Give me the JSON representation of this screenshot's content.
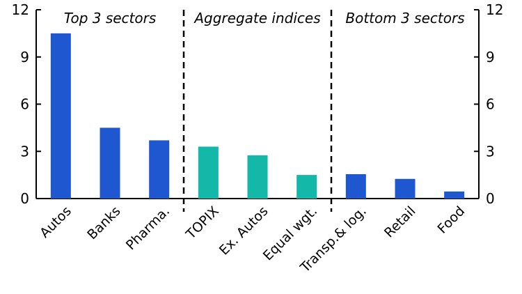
{
  "chart_data": {
    "type": "bar",
    "categories": [
      "Autos",
      "Banks",
      "Pharma.",
      "TOPIX",
      "Ex. Autos",
      "Equal wgt.",
      "Transp.& log.",
      "Retail",
      "Food"
    ],
    "values": [
      10.5,
      4.5,
      3.7,
      3.3,
      2.75,
      1.5,
      1.55,
      1.25,
      0.45
    ],
    "bar_colors": [
      "#1f57d0",
      "#1f57d0",
      "#1f57d0",
      "#13b8a8",
      "#13b8a8",
      "#13b8a8",
      "#1f57d0",
      "#1f57d0",
      "#1f57d0"
    ],
    "groups": [
      {
        "label": "Top 3 sectors",
        "start": 0,
        "end": 2
      },
      {
        "label": "Aggregate indices",
        "start": 3,
        "end": 5
      },
      {
        "label": "Bottom 3 sectors",
        "start": 6,
        "end": 8
      }
    ],
    "ylim": [
      0,
      12
    ],
    "yticks": [
      "0",
      "3",
      "6",
      "9",
      "12"
    ],
    "title": "",
    "xlabel": "",
    "ylabel": "",
    "grid": false,
    "legend": "none"
  }
}
